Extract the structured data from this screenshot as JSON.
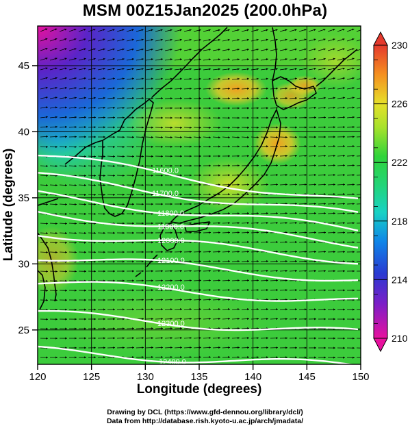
{
  "title": "MSM 00Z15Jan2025 (200.0hPa)",
  "x_axis": {
    "label": "Longitude (degrees)",
    "range": [
      120,
      150
    ],
    "ticks": [
      "120",
      "125",
      "130",
      "135",
      "140",
      "145",
      "150"
    ]
  },
  "y_axis": {
    "label": "Latitude  (degrees)",
    "range": [
      22.4,
      48.0
    ],
    "ticks": [
      "25",
      "30",
      "35",
      "40",
      "45"
    ]
  },
  "colorbar": {
    "min": 210,
    "max": 230,
    "ticks": [
      "210",
      "214",
      "218",
      "222",
      "226",
      "230"
    ],
    "colors": [
      "#e8119e",
      "#4424c8",
      "#0f85e8",
      "#18d2a4",
      "#28d43a",
      "#8fe22c",
      "#e6e02a",
      "#f59020",
      "#e53a2d"
    ]
  },
  "contours": {
    "color": "#ffffff",
    "labels": [
      "11600.0",
      "11700.0",
      "11800.0",
      "11900.0",
      "12000.0",
      "12100.0",
      "12200.0",
      "12300.0",
      "12400.0"
    ]
  },
  "credits": {
    "line1": "Drawing by DCL (https://www.gfd-dennou.org/library/dcl/)",
    "line2": "Data from http://database.rish.kyoto-u.ac.jp/arch/jmadata/"
  },
  "colors": {
    "arrow": "#000000",
    "coastline": "#000000",
    "gridline": "#000000",
    "background_field": "#3ccc3c"
  }
}
